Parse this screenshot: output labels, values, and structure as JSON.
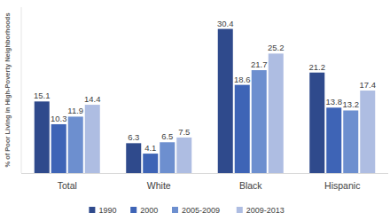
{
  "chart_data": {
    "type": "bar",
    "y_label": "% of Poor Living in High-Poverty Neighborhoods",
    "categories": [
      "Total",
      "White",
      "Black",
      "Hispanic"
    ],
    "series": [
      {
        "name": "1990",
        "color": "#2f4a8c",
        "values": [
          15.1,
          6.3,
          30.4,
          21.2
        ]
      },
      {
        "name": "2000",
        "color": "#3e64b6",
        "values": [
          10.3,
          4.1,
          18.6,
          13.8
        ]
      },
      {
        "name": "2005-2009",
        "color": "#6d8fcf",
        "values": [
          11.9,
          6.5,
          21.7,
          13.2
        ]
      },
      {
        "name": "2009-2013",
        "color": "#aebde2",
        "values": [
          14.4,
          7.5,
          25.2,
          17.4
        ]
      }
    ],
    "ylim": [
      0,
      35
    ],
    "grid": false,
    "data_labels": true,
    "tick_labels": "x",
    "legend": "bottom"
  }
}
